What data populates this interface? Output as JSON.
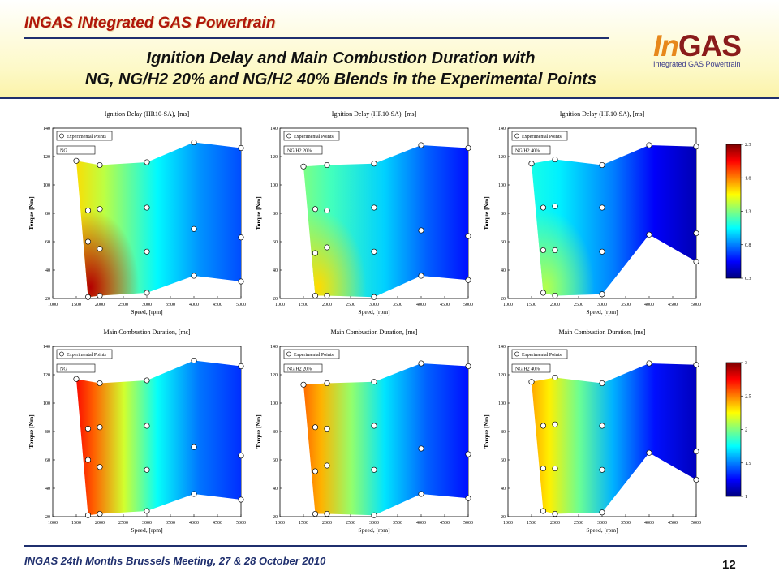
{
  "header": {
    "brand": "INGAS INtegrated GAS Powertrain",
    "title_line1": "Ignition Delay and Main Combustion Duration with",
    "title_line2": "NG, NG/H2 20% and NG/H2 40% Blends in the Experimental Points",
    "logo_in": "In",
    "logo_gas": "GAS",
    "logo_sub": "Integrated GAS Powertrain"
  },
  "footer": {
    "meeting": "INGAS 24th Months Brussels Meeting, 27 & 28 October 2010",
    "page": "12"
  },
  "colors": {
    "accent": "#1f2f6e",
    "brand": "#b0170a",
    "header_bg": "#fbf3a9"
  },
  "chart_data": [
    {
      "type": "heatmap",
      "variable": "ignition",
      "title": "Ignition Delay (HR10-SA), [ms]",
      "xlabel": "Speed, [rpm]",
      "ylabel": "Torque [Nm]",
      "legend": [
        "Experimental Points",
        "NG"
      ],
      "xlim": [
        1000,
        5000
      ],
      "ylim": [
        20,
        140
      ],
      "points": [
        [
          1500,
          117
        ],
        [
          1750,
          82
        ],
        [
          1750,
          60
        ],
        [
          1750,
          21
        ],
        [
          2000,
          114
        ],
        [
          2000,
          83
        ],
        [
          2000,
          55
        ],
        [
          2000,
          22
        ],
        [
          3000,
          116
        ],
        [
          3000,
          84
        ],
        [
          3000,
          53
        ],
        [
          3000,
          24
        ],
        [
          4000,
          130
        ],
        [
          4000,
          69
        ],
        [
          4000,
          36
        ],
        [
          5000,
          126
        ],
        [
          5000,
          63
        ],
        [
          5000,
          32
        ]
      ]
    },
    {
      "type": "heatmap",
      "variable": "ignition",
      "title": "Ignition Delay (HR10-SA), [ms]",
      "xlabel": "Speed, [rpm]",
      "ylabel": "Torque [Nm]",
      "legend": [
        "Experimental Points",
        "NG/H2 20%"
      ],
      "xlim": [
        1000,
        5000
      ],
      "ylim": [
        20,
        140
      ],
      "points": [
        [
          1500,
          113
        ],
        [
          1750,
          83
        ],
        [
          1750,
          52
        ],
        [
          1750,
          22
        ],
        [
          2000,
          114
        ],
        [
          2000,
          82
        ],
        [
          2000,
          56
        ],
        [
          2000,
          22
        ],
        [
          3000,
          115
        ],
        [
          3000,
          84
        ],
        [
          3000,
          53
        ],
        [
          3000,
          21
        ],
        [
          4000,
          128
        ],
        [
          4000,
          68
        ],
        [
          4000,
          36
        ],
        [
          5000,
          126
        ],
        [
          5000,
          64
        ],
        [
          5000,
          33
        ]
      ]
    },
    {
      "type": "heatmap",
      "variable": "ignition",
      "title": "Ignition Delay (HR10-SA), [ms]",
      "xlabel": "Speed, [rpm]",
      "ylabel": "Torque [Nm]",
      "legend": [
        "Experimental Points",
        "NG/H2 40%"
      ],
      "xlim": [
        1000,
        5000
      ],
      "ylim": [
        20,
        140
      ],
      "points": [
        [
          1500,
          115
        ],
        [
          1750,
          84
        ],
        [
          1750,
          54
        ],
        [
          1750,
          24
        ],
        [
          2000,
          118
        ],
        [
          2000,
          85
        ],
        [
          2000,
          54
        ],
        [
          2000,
          22
        ],
        [
          3000,
          114
        ],
        [
          3000,
          84
        ],
        [
          3000,
          53
        ],
        [
          3000,
          23
        ],
        [
          4000,
          128
        ],
        [
          4000,
          65
        ],
        [
          5000,
          127
        ],
        [
          5000,
          66
        ],
        [
          5000,
          46
        ]
      ]
    },
    {
      "type": "heatmap",
      "variable": "combustion",
      "title": "Main Combustion Duration, [ms]",
      "xlabel": "Speed, [rpm]",
      "ylabel": "Torque [Nm]",
      "legend": [
        "Experimental Points",
        "NG"
      ],
      "xlim": [
        1000,
        5000
      ],
      "ylim": [
        20,
        140
      ],
      "points": [
        [
          1500,
          117
        ],
        [
          1750,
          82
        ],
        [
          1750,
          60
        ],
        [
          1750,
          21
        ],
        [
          2000,
          114
        ],
        [
          2000,
          83
        ],
        [
          2000,
          55
        ],
        [
          2000,
          22
        ],
        [
          3000,
          116
        ],
        [
          3000,
          84
        ],
        [
          3000,
          53
        ],
        [
          3000,
          24
        ],
        [
          4000,
          130
        ],
        [
          4000,
          69
        ],
        [
          4000,
          36
        ],
        [
          5000,
          126
        ],
        [
          5000,
          63
        ],
        [
          5000,
          32
        ]
      ]
    },
    {
      "type": "heatmap",
      "variable": "combustion",
      "title": "Main Combustion Duration, [ms]",
      "xlabel": "Speed, [rpm]",
      "ylabel": "Torque [Nm]",
      "legend": [
        "Experimental Points",
        "NG/H2 20%"
      ],
      "xlim": [
        1000,
        5000
      ],
      "ylim": [
        20,
        140
      ],
      "points": [
        [
          1500,
          113
        ],
        [
          1750,
          83
        ],
        [
          1750,
          52
        ],
        [
          1750,
          22
        ],
        [
          2000,
          114
        ],
        [
          2000,
          82
        ],
        [
          2000,
          56
        ],
        [
          2000,
          22
        ],
        [
          3000,
          115
        ],
        [
          3000,
          84
        ],
        [
          3000,
          53
        ],
        [
          3000,
          21
        ],
        [
          4000,
          128
        ],
        [
          4000,
          68
        ],
        [
          4000,
          36
        ],
        [
          5000,
          126
        ],
        [
          5000,
          64
        ],
        [
          5000,
          33
        ]
      ]
    },
    {
      "type": "heatmap",
      "variable": "combustion",
      "title": "Main Combustion Duration, [ms]",
      "xlabel": "Speed, [rpm]",
      "ylabel": "Torque [Nm]",
      "legend": [
        "Experimental Points",
        "NG/H2 40%"
      ],
      "xlim": [
        1000,
        5000
      ],
      "ylim": [
        20,
        140
      ],
      "points": [
        [
          1500,
          115
        ],
        [
          1750,
          84
        ],
        [
          1750,
          54
        ],
        [
          1750,
          24
        ],
        [
          2000,
          118
        ],
        [
          2000,
          85
        ],
        [
          2000,
          54
        ],
        [
          2000,
          22
        ],
        [
          3000,
          114
        ],
        [
          3000,
          84
        ],
        [
          3000,
          53
        ],
        [
          3000,
          23
        ],
        [
          4000,
          128
        ],
        [
          4000,
          65
        ],
        [
          5000,
          127
        ],
        [
          5000,
          66
        ],
        [
          5000,
          46
        ]
      ]
    }
  ],
  "axes": {
    "xticks": [
      1000,
      1500,
      2000,
      2500,
      3000,
      3500,
      4000,
      4500,
      5000
    ],
    "yticks": [
      20,
      40,
      60,
      80,
      100,
      120,
      140
    ]
  },
  "colorbars": [
    {
      "variable": "ignition",
      "ticks": [
        "2.3",
        "1.8",
        "1.3",
        "0.8",
        "0.3"
      ],
      "range": [
        0.3,
        2.3
      ]
    },
    {
      "variable": "combustion",
      "ticks": [
        "3",
        "2.5",
        "2",
        "1.5",
        "1"
      ],
      "range": [
        1,
        3
      ]
    }
  ]
}
